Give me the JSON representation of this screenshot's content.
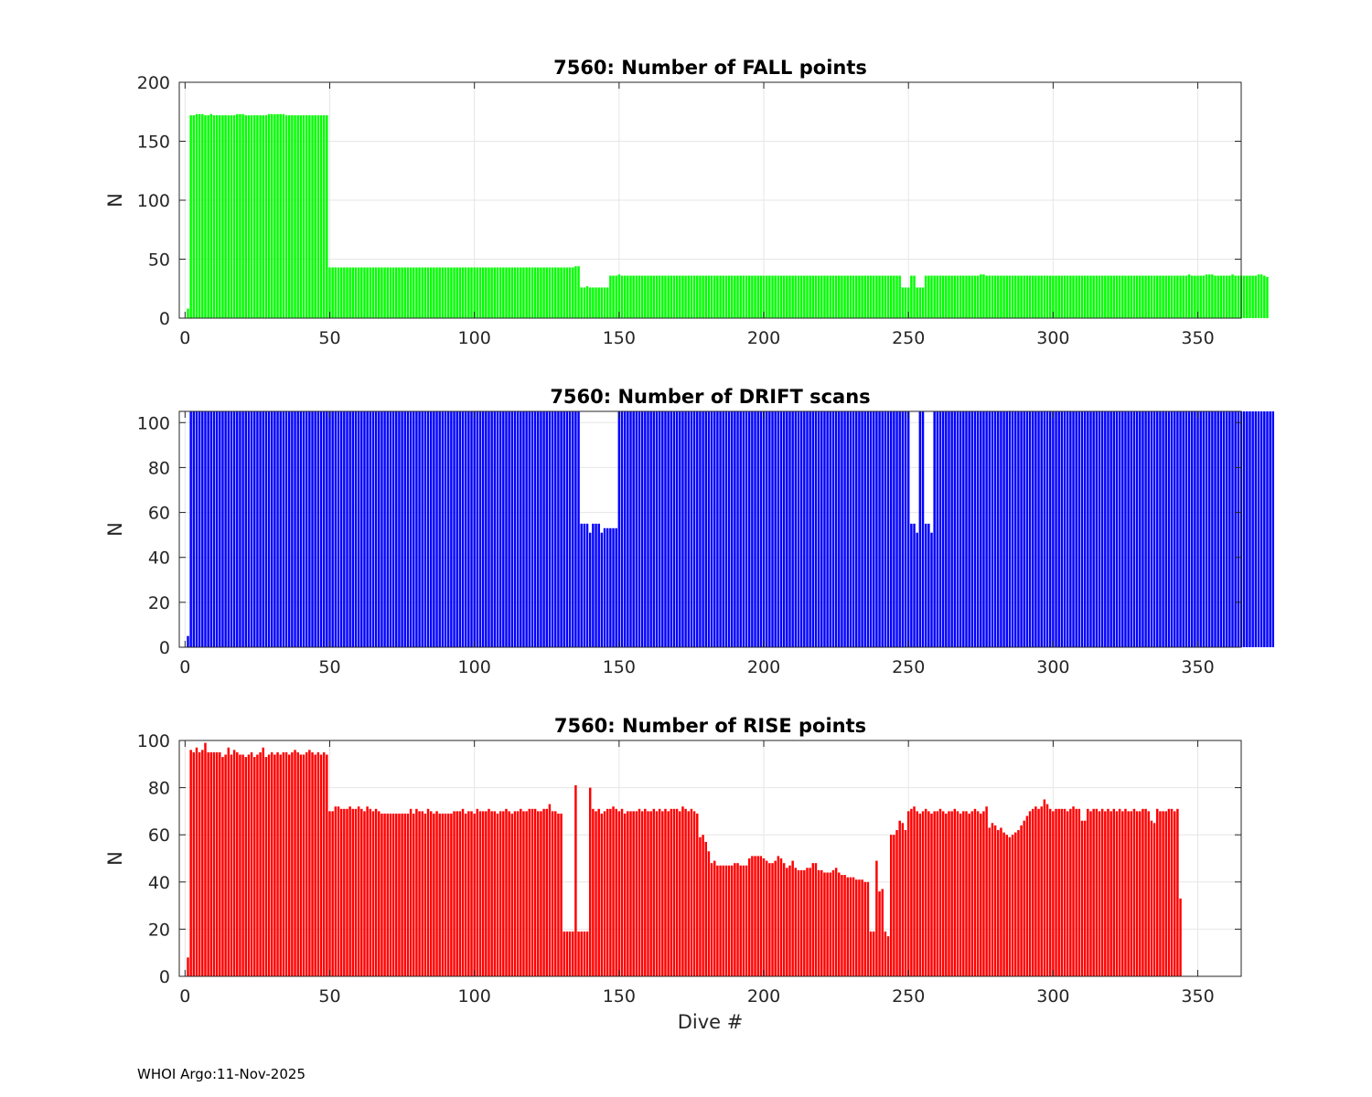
{
  "footer": "WHOI Argo:11-Nov-2025",
  "chart_data": [
    {
      "type": "bar",
      "title": "7560: Number of FALL points",
      "xlabel": "",
      "ylabel": "N",
      "xlim": [
        -2,
        365
      ],
      "ylim": [
        0,
        200
      ],
      "xticks": [
        0,
        50,
        100,
        150,
        200,
        250,
        300,
        350
      ],
      "yticks": [
        0,
        50,
        100,
        150,
        200
      ],
      "grid": true,
      "color": "#00ff00",
      "x_start": 1,
      "values": [
        8,
        172,
        172,
        173,
        173,
        173,
        172,
        172,
        173,
        172,
        172,
        172,
        172,
        172,
        172,
        172,
        172,
        173,
        173,
        173,
        172,
        172,
        172,
        172,
        172,
        172,
        172,
        172,
        173,
        173,
        173,
        173,
        173,
        173,
        172,
        172,
        172,
        172,
        172,
        172,
        172,
        172,
        172,
        172,
        172,
        172,
        172,
        172,
        172,
        43,
        43,
        43,
        43,
        43,
        43,
        43,
        43,
        43,
        43,
        43,
        43,
        43,
        43,
        43,
        43,
        43,
        43,
        43,
        43,
        43,
        43,
        43,
        43,
        43,
        43,
        43,
        43,
        43,
        43,
        43,
        43,
        43,
        43,
        43,
        43,
        43,
        43,
        43,
        43,
        43,
        43,
        43,
        43,
        43,
        43,
        43,
        43,
        43,
        43,
        43,
        43,
        43,
        43,
        43,
        43,
        43,
        43,
        43,
        43,
        43,
        43,
        43,
        43,
        43,
        43,
        43,
        43,
        43,
        43,
        43,
        43,
        43,
        43,
        43,
        43,
        43,
        43,
        43,
        43,
        43,
        43,
        43,
        43,
        43,
        44,
        44,
        26,
        26,
        27,
        26,
        26,
        26,
        26,
        26,
        26,
        26,
        36,
        36,
        36,
        37,
        36,
        36,
        36,
        36,
        36,
        36,
        36,
        36,
        36,
        36,
        36,
        36,
        36,
        36,
        36,
        36,
        36,
        36,
        36,
        36,
        36,
        36,
        36,
        36,
        36,
        36,
        36,
        36,
        36,
        36,
        36,
        36,
        36,
        36,
        36,
        36,
        36,
        36,
        36,
        36,
        36,
        36,
        36,
        36,
        36,
        36,
        36,
        36,
        36,
        36,
        36,
        36,
        36,
        36,
        36,
        36,
        36,
        36,
        36,
        36,
        36,
        36,
        36,
        36,
        36,
        36,
        36,
        36,
        36,
        36,
        36,
        36,
        36,
        36,
        36,
        36,
        36,
        36,
        36,
        36,
        36,
        36,
        36,
        36,
        36,
        36,
        36,
        36,
        36,
        36,
        36,
        36,
        36,
        36,
        36,
        36,
        36,
        26,
        26,
        26,
        36,
        36,
        26,
        26,
        26,
        36,
        36,
        36,
        36,
        36,
        36,
        36,
        36,
        36,
        36,
        36,
        36,
        36,
        36,
        36,
        36,
        36,
        36,
        36,
        37,
        37,
        36,
        36,
        36,
        36,
        36,
        36,
        36,
        36,
        36,
        36,
        36,
        36,
        36,
        36,
        36,
        36,
        36,
        36,
        36,
        36,
        36,
        36,
        36,
        36,
        36,
        36,
        36,
        36,
        36,
        36,
        36,
        36,
        36,
        36,
        36,
        36,
        36,
        36,
        36,
        36,
        36,
        36,
        36,
        36,
        36,
        36,
        36,
        36,
        36,
        36,
        36,
        36,
        36,
        36,
        36,
        36,
        36,
        36,
        36,
        36,
        36,
        36,
        36,
        36,
        36,
        36,
        36,
        36,
        36,
        36,
        37,
        36,
        36,
        36,
        36,
        36,
        37,
        37,
        37,
        36,
        36,
        36,
        36,
        36,
        36,
        37,
        36,
        36,
        36,
        36,
        36,
        36,
        36,
        36,
        37,
        37,
        36,
        35
      ]
    },
    {
      "type": "bar",
      "title": "7560: Number of DRIFT scans",
      "xlabel": "",
      "ylabel": "N",
      "xlim": [
        -2,
        365
      ],
      "ylim": [
        0,
        105
      ],
      "xticks": [
        0,
        50,
        100,
        150,
        200,
        250,
        300,
        350
      ],
      "yticks": [
        0,
        20,
        40,
        60,
        80,
        100
      ],
      "grid": true,
      "color": "#0000ff",
      "x_start": 1,
      "values": [
        5,
        105,
        105,
        105,
        105,
        105,
        105,
        105,
        105,
        105,
        105,
        105,
        105,
        105,
        105,
        105,
        105,
        105,
        105,
        105,
        105,
        105,
        105,
        105,
        105,
        105,
        105,
        105,
        105,
        105,
        105,
        105,
        105,
        105,
        105,
        105,
        105,
        105,
        105,
        105,
        105,
        105,
        105,
        105,
        105,
        105,
        105,
        105,
        105,
        105,
        105,
        105,
        105,
        105,
        105,
        105,
        105,
        105,
        105,
        105,
        105,
        105,
        105,
        105,
        105,
        105,
        105,
        105,
        105,
        105,
        105,
        105,
        105,
        105,
        105,
        105,
        105,
        105,
        105,
        105,
        105,
        105,
        105,
        105,
        105,
        105,
        105,
        105,
        105,
        105,
        105,
        105,
        105,
        105,
        105,
        105,
        105,
        105,
        105,
        105,
        105,
        105,
        105,
        105,
        105,
        105,
        105,
        105,
        105,
        105,
        105,
        105,
        105,
        105,
        105,
        105,
        105,
        105,
        105,
        105,
        105,
        105,
        105,
        105,
        105,
        105,
        105,
        105,
        105,
        105,
        105,
        105,
        105,
        105,
        105,
        105,
        55,
        55,
        55,
        51,
        55,
        55,
        55,
        51,
        53,
        53,
        53,
        53,
        53,
        105,
        105,
        105,
        105,
        105,
        105,
        105,
        105,
        105,
        105,
        105,
        105,
        105,
        105,
        105,
        105,
        105,
        105,
        105,
        105,
        105,
        105,
        105,
        105,
        105,
        105,
        105,
        105,
        105,
        105,
        105,
        105,
        105,
        105,
        105,
        105,
        105,
        105,
        105,
        105,
        105,
        105,
        105,
        105,
        105,
        105,
        105,
        105,
        105,
        105,
        105,
        105,
        105,
        105,
        105,
        105,
        105,
        105,
        105,
        105,
        105,
        105,
        105,
        105,
        105,
        105,
        105,
        105,
        105,
        105,
        105,
        105,
        105,
        105,
        105,
        105,
        105,
        105,
        105,
        105,
        105,
        105,
        105,
        105,
        105,
        105,
        105,
        105,
        105,
        105,
        105,
        105,
        105,
        105,
        105,
        105,
        105,
        105,
        105,
        105,
        105,
        55,
        55,
        51,
        105,
        105,
        55,
        55,
        51,
        105,
        105,
        105,
        105,
        105,
        105,
        105,
        105,
        105,
        105,
        105,
        105,
        105,
        105,
        105,
        105,
        105,
        105,
        105,
        105,
        105,
        105,
        105,
        105,
        105,
        105,
        105,
        105,
        105,
        105,
        105,
        105,
        105,
        105,
        105,
        105,
        105,
        105,
        105,
        105,
        105,
        105,
        105,
        105,
        105,
        105,
        105,
        105,
        105,
        105,
        105,
        105,
        105,
        105,
        105,
        105,
        105,
        105,
        105,
        105,
        105,
        105,
        105,
        105,
        105,
        105,
        105,
        105,
        105,
        105,
        105,
        105,
        105,
        105,
        105,
        105,
        105,
        105,
        105,
        105,
        105,
        105,
        105,
        105,
        105,
        105,
        105,
        105,
        105,
        105,
        105,
        105,
        105,
        105,
        105,
        105,
        105,
        105,
        105,
        105,
        105,
        105,
        105,
        105,
        105,
        105,
        105,
        105,
        105,
        105,
        105,
        105,
        105,
        105,
        105,
        105,
        105,
        105
      ]
    },
    {
      "type": "bar",
      "title": "7560: Number of RISE points",
      "xlabel": "Dive #",
      "ylabel": "N",
      "xlim": [
        -2,
        365
      ],
      "ylim": [
        0,
        100
      ],
      "xticks": [
        0,
        50,
        100,
        150,
        200,
        250,
        300,
        350
      ],
      "yticks": [
        0,
        20,
        40,
        60,
        80,
        100
      ],
      "grid": true,
      "color": "#ff0000",
      "x_start": 1,
      "values": [
        8,
        96,
        95,
        97,
        95,
        96,
        99,
        95,
        95,
        95,
        95,
        95,
        93,
        94,
        97,
        94,
        96,
        95,
        94,
        94,
        93,
        94,
        95,
        93,
        94,
        95,
        97,
        93,
        94,
        95,
        94,
        95,
        94,
        95,
        95,
        94,
        95,
        96,
        95,
        94,
        94,
        95,
        96,
        95,
        94,
        95,
        94,
        95,
        94,
        70,
        70,
        72,
        72,
        71,
        71,
        71,
        72,
        71,
        71,
        72,
        71,
        70,
        72,
        71,
        70,
        71,
        70,
        69,
        69,
        69,
        69,
        69,
        69,
        69,
        69,
        69,
        69,
        71,
        69,
        71,
        70,
        70,
        69,
        71,
        70,
        69,
        70,
        69,
        69,
        69,
        69,
        69,
        70,
        70,
        70,
        71,
        69,
        70,
        70,
        69,
        71,
        70,
        70,
        70,
        71,
        70,
        70,
        69,
        70,
        70,
        71,
        70,
        69,
        70,
        70,
        71,
        70,
        70,
        71,
        71,
        71,
        70,
        70,
        71,
        71,
        73,
        70,
        70,
        69,
        69,
        19,
        19,
        19,
        19,
        81,
        19,
        19,
        19,
        19,
        80,
        71,
        70,
        71,
        69,
        70,
        71,
        71,
        72,
        71,
        70,
        71,
        69,
        70,
        70,
        70,
        70,
        71,
        70,
        71,
        70,
        70,
        71,
        70,
        71,
        70,
        71,
        70,
        71,
        71,
        71,
        70,
        72,
        71,
        70,
        71,
        70,
        69,
        59,
        60,
        57,
        53,
        48,
        49,
        47,
        47,
        47,
        47,
        47,
        47,
        48,
        48,
        47,
        47,
        47,
        50,
        51,
        51,
        51,
        51,
        50,
        49,
        48,
        48,
        49,
        51,
        50,
        48,
        46,
        47,
        49,
        46,
        45,
        45,
        45,
        46,
        46,
        48,
        48,
        45,
        45,
        44,
        44,
        44,
        45,
        46,
        44,
        43,
        43,
        42,
        42,
        42,
        41,
        41,
        41,
        40,
        40,
        19,
        19,
        49,
        36,
        37,
        19,
        17,
        60,
        60,
        62,
        66,
        65,
        62,
        70,
        71,
        72,
        70,
        69,
        70,
        71,
        70,
        69,
        70,
        70,
        71,
        70,
        69,
        70,
        70,
        71,
        70,
        69,
        70,
        70,
        69,
        70,
        71,
        70,
        69,
        70,
        72,
        63,
        65,
        64,
        62,
        63,
        61,
        60,
        59,
        60,
        61,
        62,
        64,
        66,
        68,
        70,
        71,
        72,
        71,
        72,
        75,
        73,
        71,
        70,
        71,
        71,
        71,
        71,
        70,
        71,
        72,
        71,
        71,
        66,
        66,
        71,
        70,
        71,
        71,
        70,
        71,
        70,
        71,
        70,
        71,
        70,
        71,
        70,
        71,
        70,
        70,
        71,
        70,
        70,
        71,
        71,
        70,
        66,
        65,
        71,
        70,
        70,
        70,
        71,
        71,
        70,
        71,
        33
      ]
    }
  ]
}
